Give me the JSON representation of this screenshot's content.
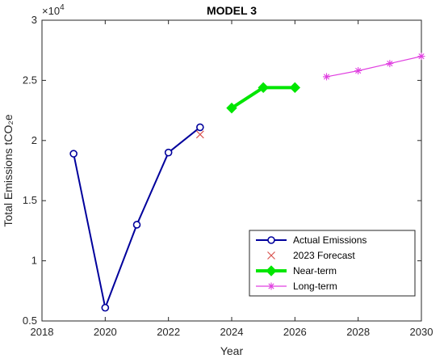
{
  "chart_data": {
    "type": "line",
    "title": "MODEL 3",
    "xlabel": "Year",
    "ylabel": "Total Emissions tCO₂e",
    "xlim": [
      2018,
      2030
    ],
    "ylim": [
      5000,
      30000
    ],
    "x_ticks": [
      2018,
      2020,
      2022,
      2024,
      2026,
      2028,
      2030
    ],
    "x_tick_labels": [
      "2018",
      "2020",
      "2022",
      "2024",
      "2026",
      "2028",
      "2030"
    ],
    "y_ticks": [
      5000,
      10000,
      15000,
      20000,
      25000,
      30000
    ],
    "y_tick_labels": [
      "0.5",
      "1",
      "1.5",
      "2",
      "2.5",
      "3"
    ],
    "y_exponent_label": "×10",
    "y_exponent_power": "4",
    "grid": false,
    "legend_position": "lower-right",
    "series": [
      {
        "name": "Actual Emissions",
        "color": "#00009c",
        "marker": "circle",
        "line": "solid",
        "x": [
          2019,
          2020,
          2021,
          2022,
          2023
        ],
        "y": [
          18900,
          6100,
          13000,
          19000,
          21100
        ]
      },
      {
        "name": "2023 Forecast",
        "color": "#d9534f",
        "marker": "x",
        "line": "none",
        "x": [
          2023
        ],
        "y": [
          20500
        ]
      },
      {
        "name": "Near-term",
        "color": "#00e600",
        "marker": "diamond",
        "line": "solid-thick",
        "x": [
          2024,
          2025,
          2026
        ],
        "y": [
          22700,
          24400,
          24400
        ]
      },
      {
        "name": "Long-term",
        "color": "#e040e0",
        "marker": "asterisk",
        "line": "solid",
        "x": [
          2027,
          2028,
          2029,
          2030
        ],
        "y": [
          25300,
          25800,
          26400,
          27000
        ]
      }
    ]
  }
}
